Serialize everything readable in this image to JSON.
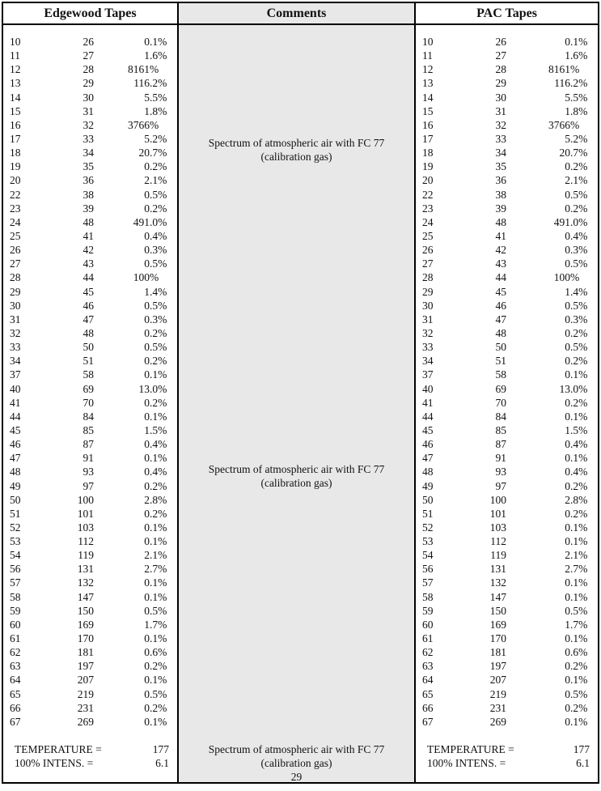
{
  "columns": {
    "edgewood": {
      "header": "Edgewood Tapes"
    },
    "comments": {
      "header": "Comments"
    },
    "pac": {
      "header": "PAC Tapes"
    }
  },
  "comment_blocks": [
    {
      "line1": "Spectrum of atmospheric air with FC 77",
      "line2": "(calibration gas)"
    },
    {
      "line1": "Spectrum of atmospheric air with FC 77",
      "line2": "(calibration gas)"
    },
    {
      "line1": "Spectrum of atmospheric air with FC 77",
      "line2": "(calibration gas)",
      "page_number": "29"
    }
  ],
  "rows": [
    [
      "10",
      "26",
      "0.1%"
    ],
    [
      "11",
      "27",
      "1.6%"
    ],
    [
      "12",
      "28",
      "8161%"
    ],
    [
      "13",
      "29",
      "116.2%"
    ],
    [
      "14",
      "30",
      "5.5%"
    ],
    [
      "15",
      "31",
      "1.8%"
    ],
    [
      "16",
      "32",
      "3766%"
    ],
    [
      "17",
      "33",
      "5.2%"
    ],
    [
      "18",
      "34",
      "20.7%"
    ],
    [
      "19",
      "35",
      "0.2%"
    ],
    [
      "20",
      "36",
      "2.1%"
    ],
    [
      "22",
      "38",
      "0.5%"
    ],
    [
      "23",
      "39",
      "0.2%"
    ],
    [
      "24",
      "48",
      "491.0%"
    ],
    [
      "25",
      "41",
      "0.4%"
    ],
    [
      "26",
      "42",
      "0.3%"
    ],
    [
      "27",
      "43",
      "0.5%"
    ],
    [
      "28",
      "44",
      "100%"
    ],
    [
      "29",
      "45",
      "1.4%"
    ],
    [
      "30",
      "46",
      "0.5%"
    ],
    [
      "31",
      "47",
      "0.3%"
    ],
    [
      "32",
      "48",
      "0.2%"
    ],
    [
      "33",
      "50",
      "0.5%"
    ],
    [
      "34",
      "51",
      "0.2%"
    ],
    [
      "37",
      "58",
      "0.1%"
    ],
    [
      "40",
      "69",
      "13.0%"
    ],
    [
      "41",
      "70",
      "0.2%"
    ],
    [
      "44",
      "84",
      "0.1%"
    ],
    [
      "45",
      "85",
      "1.5%"
    ],
    [
      "46",
      "87",
      "0.4%"
    ],
    [
      "47",
      "91",
      "0.1%"
    ],
    [
      "48",
      "93",
      "0.4%"
    ],
    [
      "49",
      "97",
      "0.2%"
    ],
    [
      "50",
      "100",
      "2.8%"
    ],
    [
      "51",
      "101",
      "0.2%"
    ],
    [
      "52",
      "103",
      "0.1%"
    ],
    [
      "53",
      "112",
      "0.1%"
    ],
    [
      "54",
      "119",
      "2.1%"
    ],
    [
      "56",
      "131",
      "2.7%"
    ],
    [
      "57",
      "132",
      "0.1%"
    ],
    [
      "58",
      "147",
      "0.1%"
    ],
    [
      "59",
      "150",
      "0.5%"
    ],
    [
      "60",
      "169",
      "1.7%"
    ],
    [
      "61",
      "170",
      "0.1%"
    ],
    [
      "62",
      "181",
      "0.6%"
    ],
    [
      "63",
      "197",
      "0.2%"
    ],
    [
      "64",
      "207",
      "0.1%"
    ],
    [
      "65",
      "219",
      "0.5%"
    ],
    [
      "66",
      "231",
      "0.2%"
    ],
    [
      "67",
      "269",
      "0.1%"
    ]
  ],
  "footer": {
    "temperature_label": "TEMPERATURE =",
    "temperature_value": "177",
    "intensity_label": "100% INTENS. =",
    "intensity_value": "6.1"
  },
  "colors": {
    "comments_bg": "#e8e8e8",
    "border": "#000000",
    "page_bg": "#ffffff"
  }
}
